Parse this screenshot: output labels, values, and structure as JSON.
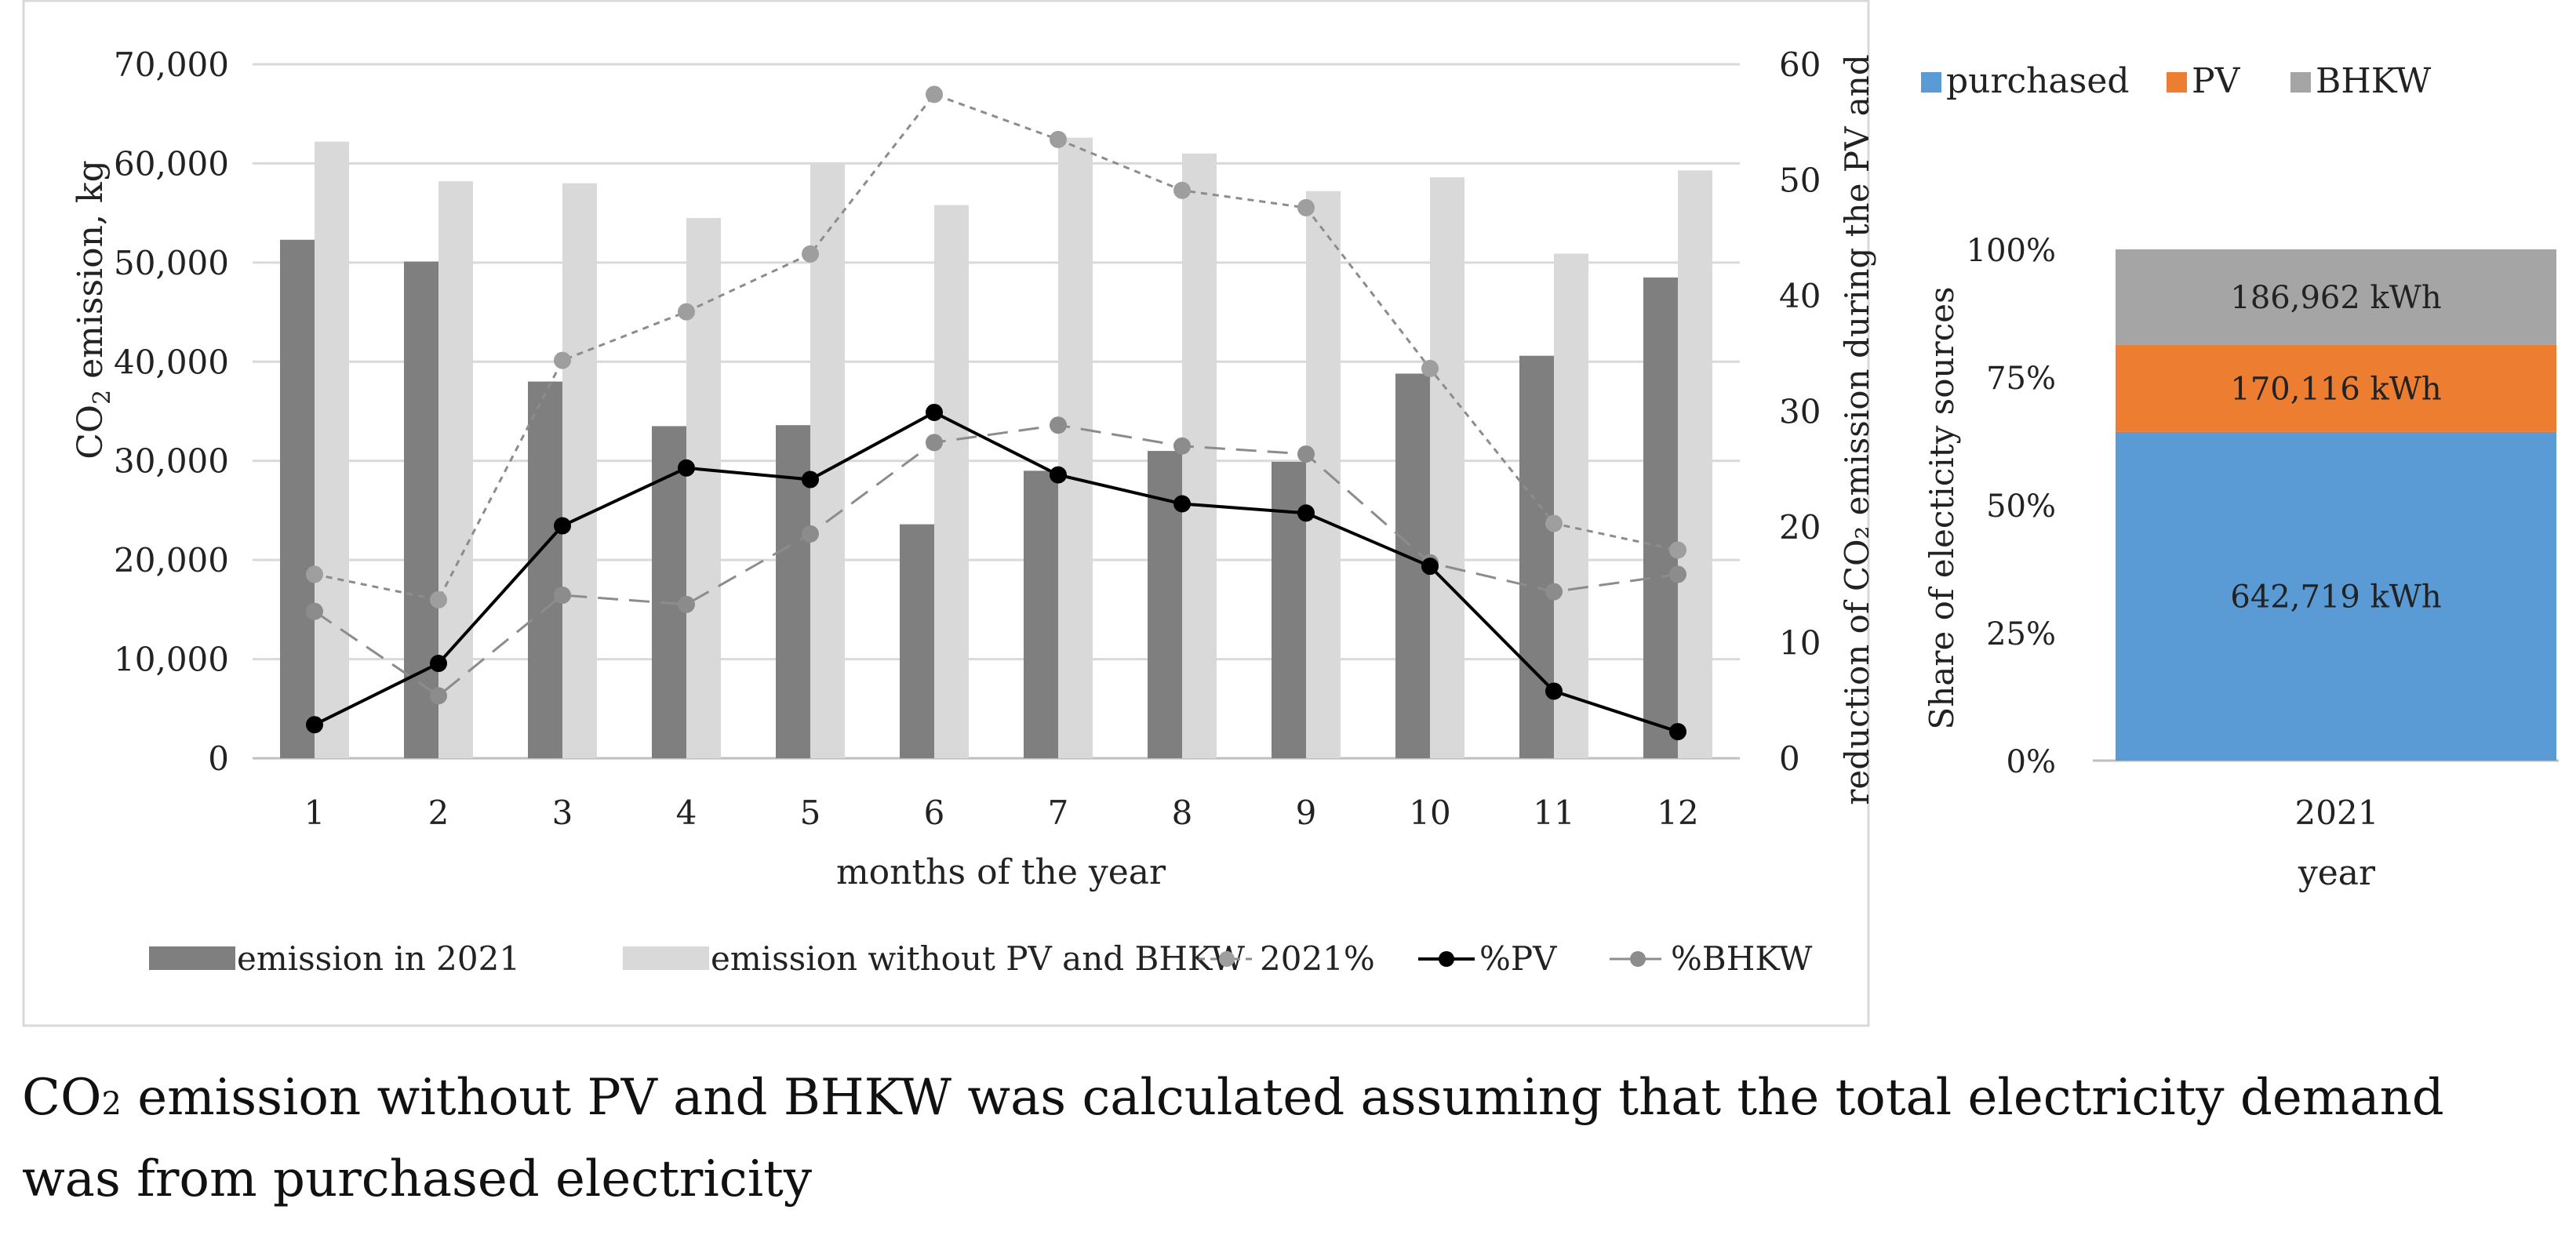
{
  "chart_data": [
    {
      "type": "bar+line",
      "title": "",
      "xlabel": "months of the year",
      "ylabel_prefix": "CO",
      "ylabel_sub": "2",
      "ylabel_suffix": " emission, kg",
      "y2label": "reduction of CO₂ emission during  the PV and",
      "categories": [
        "1",
        "2",
        "3",
        "4",
        "5",
        "6",
        "7",
        "8",
        "9",
        "10",
        "11",
        "12"
      ],
      "ylim": [
        0,
        70000
      ],
      "y_ticks": [
        "0",
        "10,000",
        "20,000",
        "30,000",
        "40,000",
        "50,000",
        "60,000",
        "70,000"
      ],
      "y_tick_values": [
        0,
        10000,
        20000,
        30000,
        40000,
        50000,
        60000,
        70000
      ],
      "y2lim": [
        0,
        60
      ],
      "y2_ticks": [
        "0",
        "10",
        "20",
        "30",
        "40",
        "50",
        "60"
      ],
      "y2_tick_values": [
        0,
        10,
        20,
        30,
        40,
        50,
        60
      ],
      "bar_series": [
        {
          "name": "emission in 2021",
          "color": "#7f7f7f",
          "values": [
            52300,
            50100,
            38000,
            33500,
            33600,
            23600,
            29000,
            31000,
            29900,
            38800,
            40600,
            48500
          ]
        },
        {
          "name": "emission without PV and BHKW",
          "color": "#d9d9d9",
          "values": [
            62200,
            58200,
            58000,
            54500,
            60000,
            55800,
            62600,
            61000,
            57200,
            58600,
            50900,
            59300
          ]
        }
      ],
      "line_series": [
        {
          "name": "2021%",
          "color": "#8c8c8c",
          "dash": "short",
          "marker": "#9e9e9e",
          "values": [
            15.9,
            13.7,
            34.4,
            38.6,
            43.6,
            57.4,
            53.5,
            49.1,
            47.6,
            33.7,
            20.3,
            18.0
          ]
        },
        {
          "name": "%PV",
          "color": "#000000",
          "dash": "solid",
          "marker": "#000000",
          "values": [
            2.9,
            8.2,
            20.1,
            25.1,
            24.1,
            29.9,
            24.5,
            22.0,
            21.2,
            16.6,
            5.8,
            2.3
          ]
        },
        {
          "name": "%BHKW",
          "color": "#8c8c8c",
          "dash": "long",
          "marker": "#8c8c8c",
          "values": [
            12.7,
            5.4,
            14.1,
            13.3,
            19.4,
            27.3,
            28.8,
            27.0,
            26.3,
            16.9,
            14.4,
            15.9
          ]
        }
      ],
      "legend": "bottom"
    },
    {
      "type": "stacked-bar-100",
      "title": "",
      "xlabel": "year",
      "ylabel": "Share of electicity sources",
      "categories": [
        "2021"
      ],
      "y_ticks": [
        "0%",
        "25%",
        "50%",
        "75%",
        "100%"
      ],
      "y_tick_values": [
        0,
        25,
        50,
        75,
        100
      ],
      "series": [
        {
          "name": "purchased",
          "color": "#5b9bd5",
          "value": 642719,
          "label": "642,719 kWh"
        },
        {
          "name": "PV",
          "color": "#ed7d31",
          "value": 170116,
          "label": "170,116 kWh"
        },
        {
          "name": "BHKW",
          "color": "#a5a5a5",
          "value": 186962,
          "label": "186,962 kWh"
        }
      ],
      "legend": "top"
    }
  ],
  "caption": {
    "prefix": "CO",
    "sub": "2",
    "text": " emission without PV and BHKW was calculated assuming that the total electricity demand was from purchased electricity"
  }
}
